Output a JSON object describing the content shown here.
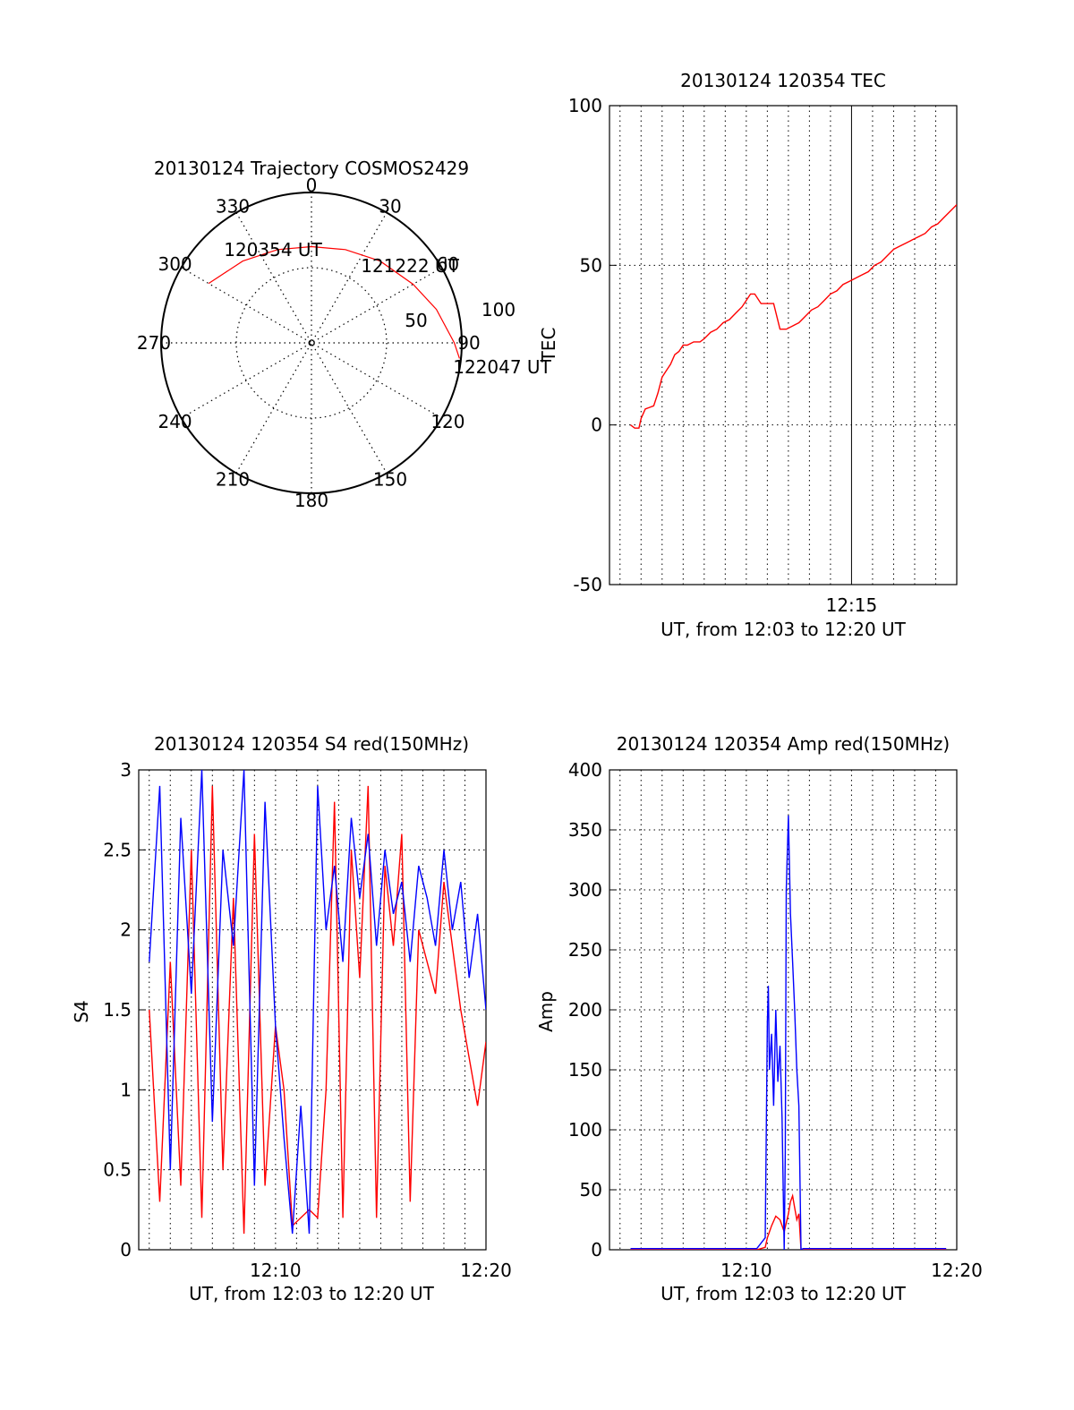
{
  "colors": {
    "red": "#ff0000",
    "blue": "#0000ff",
    "axis": "#000000",
    "grid": "#000000"
  },
  "chart_data": [
    {
      "id": "trajectory",
      "type": "polar",
      "title": "20130124 Trajectory COSMOS2429",
      "azimuth_labels": [
        "0",
        "30",
        "60",
        "90",
        "120",
        "150",
        "180",
        "210",
        "240",
        "270",
        "300",
        "330"
      ],
      "elevation_labels": [
        "50",
        "100"
      ],
      "track_labels": [
        "120354 UT",
        "121222 UT",
        "122047 UT"
      ],
      "series": [
        {
          "color": "red",
          "points": [
            [
              -60.0,
              0.79
            ],
            [
              -40,
              0.71
            ],
            [
              -20,
              0.66
            ],
            [
              0,
              0.64
            ],
            [
              20,
              0.66
            ],
            [
              40,
              0.71
            ],
            [
              60,
              0.78
            ],
            [
              75,
              0.86
            ],
            [
              90,
              0.95
            ],
            [
              96,
              0.99
            ]
          ]
        }
      ]
    },
    {
      "id": "tec",
      "type": "line",
      "title": "20130124 120354 TEC",
      "xlabel": "UT, from 12:03 to 12:20 UT",
      "ylabel": "TEC",
      "x_tick_labels": [
        {
          "x": 15,
          "label": "12:15"
        }
      ],
      "xlim": [
        3.5,
        20
      ],
      "ylim": [
        -50,
        100
      ],
      "y_ticks": [
        -50,
        0,
        50,
        100
      ],
      "series": [
        {
          "color": "red",
          "x": [
            4.5,
            4.7,
            4.9,
            5.0,
            5.2,
            5.4,
            5.6,
            5.8,
            6.0,
            6.2,
            6.4,
            6.6,
            6.8,
            7.0,
            7.2,
            7.5,
            7.8,
            8.0,
            8.3,
            8.6,
            8.9,
            9.2,
            9.5,
            9.8,
            10.0,
            10.2,
            10.4,
            10.7,
            11.0,
            11.3,
            11.6,
            11.9,
            12.2,
            12.5,
            12.8,
            13.1,
            13.4,
            13.7,
            14.0,
            14.3,
            14.6,
            14.9,
            15.2,
            15.5,
            15.8,
            16.1,
            16.4,
            16.7,
            17.0,
            17.3,
            17.6,
            17.9,
            18.2,
            18.5,
            18.8,
            19.1,
            19.4,
            19.7,
            20.0
          ],
          "y": [
            0,
            -1,
            -1,
            2,
            5,
            5.5,
            6,
            10,
            15,
            17,
            19,
            22,
            23,
            25,
            25,
            26,
            26,
            27,
            29,
            30,
            32,
            33,
            35,
            37,
            39,
            41,
            41,
            38,
            38,
            38,
            30,
            30,
            31,
            32,
            34,
            36,
            37,
            39,
            41,
            42,
            44,
            45,
            46,
            47,
            48,
            50,
            51,
            53,
            55,
            56,
            57,
            58,
            59,
            60,
            62,
            63,
            65,
            67,
            69
          ]
        }
      ]
    },
    {
      "id": "s4",
      "type": "line",
      "title": "20130124 120354 S4 red(150MHz)",
      "xlabel": "UT, from 12:03 to 12:20 UT",
      "ylabel": "S4",
      "x_tick_labels": [
        {
          "x": 10,
          "label": "12:10"
        },
        {
          "x": 20,
          "label": "12:20"
        }
      ],
      "xlim": [
        3.5,
        20
      ],
      "ylim": [
        0,
        3
      ],
      "y_ticks": [
        0,
        0.5,
        1,
        1.5,
        2,
        2.5,
        3
      ],
      "y_tick_labels": [
        "0",
        "0.5",
        "1",
        "1.5",
        "2",
        "2.5",
        "3"
      ],
      "series": [
        {
          "color": "red",
          "x": [
            4.0,
            4.5,
            5.0,
            5.5,
            6.0,
            6.5,
            7.0,
            7.5,
            8.0,
            8.5,
            9.0,
            9.5,
            10.0,
            10.4,
            10.8,
            11.2,
            11.6,
            12.0,
            12.4,
            12.8,
            13.2,
            13.6,
            14.0,
            14.4,
            14.8,
            15.2,
            15.6,
            16.0,
            16.4,
            16.8,
            17.2,
            17.6,
            18.0,
            18.4,
            18.8,
            19.2,
            19.6,
            20.0
          ],
          "y": [
            1.5,
            0.3,
            1.8,
            0.4,
            2.5,
            0.2,
            2.9,
            0.5,
            2.2,
            0.1,
            2.6,
            0.4,
            1.4,
            1.0,
            0.15,
            0.2,
            0.25,
            0.2,
            1.0,
            2.8,
            0.2,
            2.5,
            1.7,
            2.9,
            0.2,
            2.4,
            1.9,
            2.6,
            0.3,
            2.0,
            1.8,
            1.6,
            2.3,
            1.9,
            1.5,
            1.2,
            0.9,
            1.3
          ]
        },
        {
          "color": "blue",
          "x": [
            4.0,
            4.5,
            5.0,
            5.5,
            6.0,
            6.5,
            7.0,
            7.5,
            8.0,
            8.5,
            9.0,
            9.5,
            10.0,
            10.4,
            10.8,
            11.2,
            11.6,
            12.0,
            12.4,
            12.8,
            13.2,
            13.6,
            14.0,
            14.4,
            14.8,
            15.2,
            15.6,
            16.0,
            16.4,
            16.8,
            17.2,
            17.6,
            18.0,
            18.4,
            18.8,
            19.2,
            19.6,
            20.0
          ],
          "y": [
            1.8,
            2.9,
            0.5,
            2.7,
            1.6,
            3.0,
            0.8,
            2.5,
            1.9,
            3.0,
            0.4,
            2.8,
            1.4,
            0.7,
            0.1,
            0.9,
            0.1,
            2.9,
            2.0,
            2.4,
            1.8,
            2.7,
            2.2,
            2.6,
            1.9,
            2.5,
            2.1,
            2.3,
            1.8,
            2.4,
            2.2,
            1.9,
            2.5,
            2.0,
            2.3,
            1.7,
            2.1,
            1.5
          ]
        }
      ]
    },
    {
      "id": "amp",
      "type": "line",
      "title": "20130124 120354 Amp red(150MHz)",
      "xlabel": "UT, from 12:03 to 12:20 UT",
      "ylabel": "Amp",
      "x_tick_labels": [
        {
          "x": 10,
          "label": "12:10"
        },
        {
          "x": 20,
          "label": "12:20"
        }
      ],
      "xlim": [
        3.5,
        20
      ],
      "ylim": [
        0,
        400
      ],
      "y_ticks": [
        0,
        50,
        100,
        150,
        200,
        250,
        300,
        350,
        400
      ],
      "series": [
        {
          "color": "red",
          "x": [
            4.5,
            6,
            8,
            10.5,
            10.9,
            11.0,
            11.2,
            11.4,
            11.6,
            11.8,
            12.0,
            12.1,
            12.2,
            12.3,
            12.4,
            12.5,
            12.6,
            13,
            15,
            17,
            19.5
          ],
          "y": [
            0,
            0,
            0,
            0,
            2,
            10,
            20,
            28,
            25,
            15,
            30,
            40,
            45,
            35,
            25,
            30,
            0,
            0,
            0,
            0,
            0
          ]
        },
        {
          "color": "blue",
          "x": [
            4.5,
            6,
            8,
            10.5,
            10.9,
            11.0,
            11.05,
            11.1,
            11.2,
            11.3,
            11.4,
            11.5,
            11.6,
            11.7,
            11.8,
            11.85,
            11.9,
            12.0,
            12.1,
            12.2,
            12.3,
            12.4,
            12.5,
            12.6,
            12.7,
            13,
            15,
            17,
            19.5
          ],
          "y": [
            1,
            1,
            1,
            1,
            10,
            190,
            220,
            150,
            180,
            120,
            200,
            140,
            170,
            110,
            0,
            80,
            300,
            362,
            280,
            240,
            200,
            150,
            120,
            0,
            1,
            1,
            1,
            1,
            1
          ]
        }
      ]
    }
  ]
}
